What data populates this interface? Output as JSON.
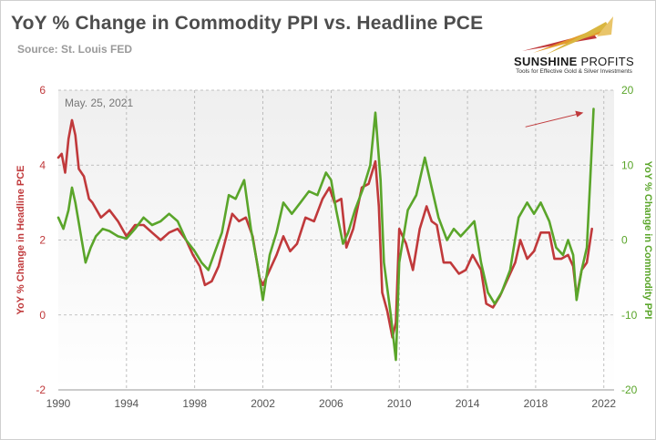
{
  "header": {
    "title": "YoY % Change in Commodity PPI vs. Headline PCE",
    "subtitle": "Source: St. Louis FED"
  },
  "logo": {
    "name_bold": "SUNSHINE",
    "name_light": " PROFITS",
    "tagline": "Tools for Effective Gold & Silver Investments"
  },
  "colors": {
    "pce": "#c0393b",
    "ppi": "#5aa52a",
    "arrow": "#c0393b",
    "plot_bg_top": "#f2f2f2",
    "grid": "#b0b0b0"
  },
  "chart_data": {
    "type": "line",
    "annotation": "May. 25, 2021",
    "xlabel": "",
    "ylabel_left": "YoY % Change in Headline PCE",
    "ylabel_right": "YoY % Change in Commodity PPI",
    "xlim": [
      1990,
      2022.6
    ],
    "ylim_left": [
      -2,
      6
    ],
    "ylim_right": [
      -20,
      20
    ],
    "x_ticks": [
      "1990",
      "1994",
      "1998",
      "2002",
      "2006",
      "2010",
      "2014",
      "2018",
      "2022"
    ],
    "y_ticks_left": [
      "-2",
      "0",
      "2",
      "4",
      "6"
    ],
    "y_ticks_right": [
      "-20",
      "-10",
      "0",
      "10",
      "20"
    ],
    "grid": "dashed",
    "series": [
      {
        "name": "YoY % Change in Headline PCE",
        "axis": "left",
        "points": [
          [
            1990.0,
            4.2
          ],
          [
            1990.2,
            4.3
          ],
          [
            1990.4,
            3.8
          ],
          [
            1990.6,
            4.7
          ],
          [
            1990.8,
            5.2
          ],
          [
            1991.0,
            4.8
          ],
          [
            1991.2,
            3.9
          ],
          [
            1991.5,
            3.7
          ],
          [
            1991.8,
            3.1
          ],
          [
            1992.0,
            3.0
          ],
          [
            1992.5,
            2.6
          ],
          [
            1993.0,
            2.8
          ],
          [
            1993.5,
            2.5
          ],
          [
            1994.0,
            2.1
          ],
          [
            1994.5,
            2.4
          ],
          [
            1995.0,
            2.4
          ],
          [
            1995.5,
            2.2
          ],
          [
            1996.0,
            2.0
          ],
          [
            1996.5,
            2.2
          ],
          [
            1997.0,
            2.3
          ],
          [
            1997.5,
            2.0
          ],
          [
            1997.9,
            1.6
          ],
          [
            1998.3,
            1.3
          ],
          [
            1998.6,
            0.8
          ],
          [
            1999.0,
            0.9
          ],
          [
            1999.4,
            1.3
          ],
          [
            1999.8,
            2.0
          ],
          [
            2000.2,
            2.7
          ],
          [
            2000.6,
            2.5
          ],
          [
            2001.0,
            2.6
          ],
          [
            2001.4,
            2.1
          ],
          [
            2001.8,
            1.0
          ],
          [
            2002.0,
            0.8
          ],
          [
            2002.4,
            1.2
          ],
          [
            2002.8,
            1.6
          ],
          [
            2003.2,
            2.1
          ],
          [
            2003.6,
            1.7
          ],
          [
            2004.0,
            1.9
          ],
          [
            2004.5,
            2.6
          ],
          [
            2005.0,
            2.5
          ],
          [
            2005.5,
            3.1
          ],
          [
            2005.9,
            3.4
          ],
          [
            2006.2,
            3.0
          ],
          [
            2006.6,
            3.1
          ],
          [
            2006.9,
            1.8
          ],
          [
            2007.3,
            2.3
          ],
          [
            2007.8,
            3.4
          ],
          [
            2008.2,
            3.5
          ],
          [
            2008.6,
            4.1
          ],
          [
            2008.8,
            2.9
          ],
          [
            2009.0,
            0.6
          ],
          [
            2009.3,
            0.1
          ],
          [
            2009.6,
            -0.6
          ],
          [
            2009.8,
            -0.2
          ],
          [
            2010.0,
            2.3
          ],
          [
            2010.4,
            1.9
          ],
          [
            2010.8,
            1.2
          ],
          [
            2011.2,
            2.3
          ],
          [
            2011.6,
            2.9
          ],
          [
            2011.9,
            2.5
          ],
          [
            2012.2,
            2.4
          ],
          [
            2012.6,
            1.4
          ],
          [
            2013.0,
            1.4
          ],
          [
            2013.5,
            1.1
          ],
          [
            2013.9,
            1.2
          ],
          [
            2014.3,
            1.6
          ],
          [
            2014.8,
            1.2
          ],
          [
            2015.1,
            0.3
          ],
          [
            2015.5,
            0.2
          ],
          [
            2015.9,
            0.5
          ],
          [
            2016.3,
            0.9
          ],
          [
            2016.8,
            1.4
          ],
          [
            2017.1,
            2.0
          ],
          [
            2017.5,
            1.5
          ],
          [
            2017.9,
            1.7
          ],
          [
            2018.3,
            2.2
          ],
          [
            2018.8,
            2.2
          ],
          [
            2019.1,
            1.5
          ],
          [
            2019.5,
            1.5
          ],
          [
            2019.9,
            1.6
          ],
          [
            2020.2,
            1.3
          ],
          [
            2020.4,
            0.5
          ],
          [
            2020.7,
            1.2
          ],
          [
            2021.0,
            1.4
          ],
          [
            2021.3,
            2.3
          ]
        ]
      },
      {
        "name": "YoY % Change in Commodity PPI",
        "axis": "right",
        "points": [
          [
            1990.0,
            3.0
          ],
          [
            1990.3,
            1.5
          ],
          [
            1990.6,
            4.0
          ],
          [
            1990.8,
            7.0
          ],
          [
            1991.0,
            5.0
          ],
          [
            1991.3,
            1.0
          ],
          [
            1991.6,
            -3.0
          ],
          [
            1991.9,
            -1.0
          ],
          [
            1992.2,
            0.5
          ],
          [
            1992.6,
            1.5
          ],
          [
            1993.0,
            1.2
          ],
          [
            1993.5,
            0.5
          ],
          [
            1994.0,
            0.2
          ],
          [
            1994.5,
            1.5
          ],
          [
            1995.0,
            3.0
          ],
          [
            1995.5,
            2.0
          ],
          [
            1996.0,
            2.5
          ],
          [
            1996.5,
            3.5
          ],
          [
            1997.0,
            2.5
          ],
          [
            1997.5,
            0.0
          ],
          [
            1998.0,
            -1.5
          ],
          [
            1998.4,
            -3.0
          ],
          [
            1998.8,
            -4.0
          ],
          [
            1999.2,
            -1.5
          ],
          [
            1999.6,
            1.0
          ],
          [
            2000.0,
            6.0
          ],
          [
            2000.4,
            5.5
          ],
          [
            2000.9,
            8.0
          ],
          [
            2001.3,
            1.5
          ],
          [
            2001.7,
            -3.5
          ],
          [
            2002.0,
            -8.0
          ],
          [
            2002.4,
            -2.0
          ],
          [
            2002.8,
            1.0
          ],
          [
            2003.2,
            5.0
          ],
          [
            2003.7,
            3.5
          ],
          [
            2004.2,
            5.0
          ],
          [
            2004.7,
            6.5
          ],
          [
            2005.2,
            6.0
          ],
          [
            2005.7,
            9.0
          ],
          [
            2006.0,
            8.0
          ],
          [
            2006.3,
            4.0
          ],
          [
            2006.7,
            -0.5
          ],
          [
            2007.0,
            1.0
          ],
          [
            2007.4,
            4.0
          ],
          [
            2007.9,
            7.0
          ],
          [
            2008.3,
            10.0
          ],
          [
            2008.6,
            17.0
          ],
          [
            2008.9,
            8.0
          ],
          [
            2009.1,
            -3.0
          ],
          [
            2009.5,
            -10.0
          ],
          [
            2009.8,
            -16.0
          ],
          [
            2010.0,
            -3.0
          ],
          [
            2010.5,
            4.0
          ],
          [
            2011.0,
            6.0
          ],
          [
            2011.5,
            11.0
          ],
          [
            2011.9,
            7.0
          ],
          [
            2012.3,
            3.0
          ],
          [
            2012.8,
            0.0
          ],
          [
            2013.2,
            1.5
          ],
          [
            2013.6,
            0.5
          ],
          [
            2014.0,
            1.5
          ],
          [
            2014.4,
            2.5
          ],
          [
            2014.8,
            -3.0
          ],
          [
            2015.2,
            -7.0
          ],
          [
            2015.6,
            -8.5
          ],
          [
            2016.0,
            -7.0
          ],
          [
            2016.5,
            -4.0
          ],
          [
            2017.0,
            3.0
          ],
          [
            2017.5,
            5.0
          ],
          [
            2017.9,
            3.5
          ],
          [
            2018.3,
            5.0
          ],
          [
            2018.8,
            2.5
          ],
          [
            2019.2,
            -1.0
          ],
          [
            2019.6,
            -2.0
          ],
          [
            2019.9,
            0.0
          ],
          [
            2020.2,
            -2.0
          ],
          [
            2020.4,
            -8.0
          ],
          [
            2020.7,
            -4.0
          ],
          [
            2021.0,
            -1.0
          ],
          [
            2021.2,
            8.0
          ],
          [
            2021.4,
            17.5
          ]
        ]
      }
    ]
  }
}
